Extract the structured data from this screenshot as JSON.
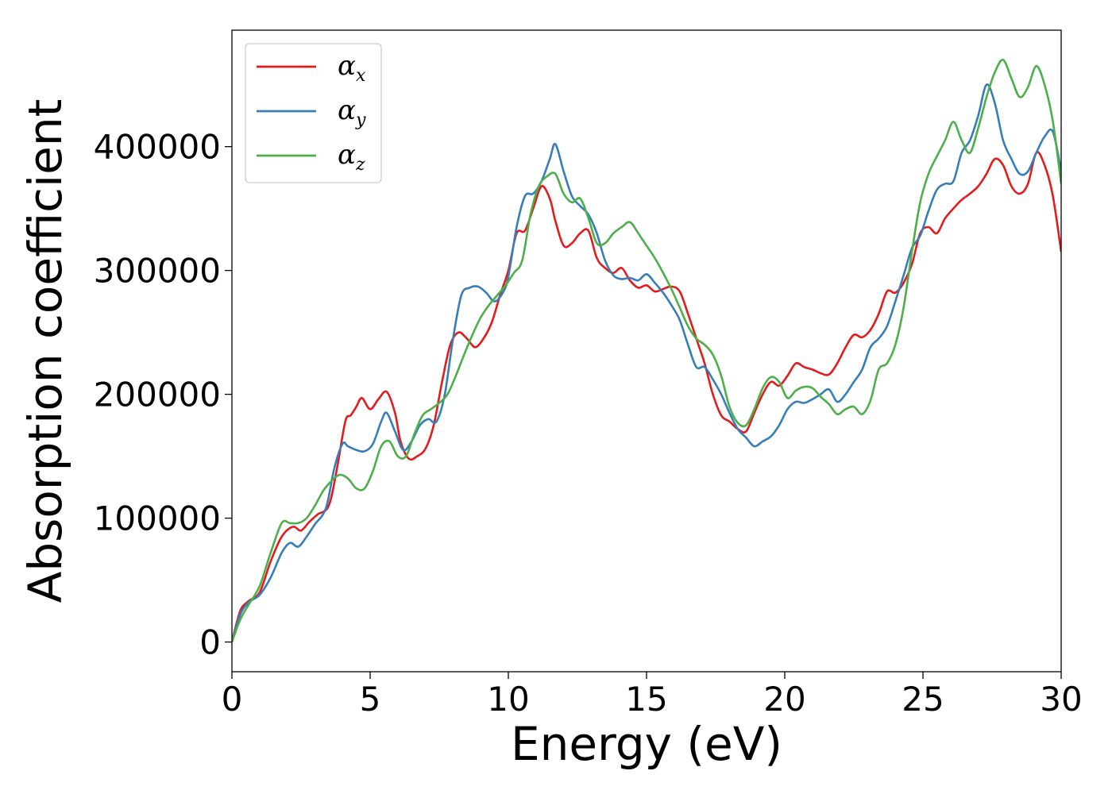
{
  "chart_data": {
    "type": "line",
    "title": "",
    "xlabel": "Energy (eV)",
    "ylabel": "Absorption coefficient",
    "xlim": [
      0,
      30
    ],
    "ylim": [
      -24000,
      494000
    ],
    "xticks": [
      0,
      5,
      10,
      15,
      20,
      25,
      30
    ],
    "yticks": [
      0,
      100000,
      200000,
      300000,
      400000
    ],
    "grid": false,
    "legend_position": "top-left",
    "series": [
      {
        "name": "α",
        "subscript": "x",
        "color": "#e41a1c",
        "x": [
          0,
          0.3,
          0.6,
          1.0,
          1.4,
          1.8,
          2.2,
          2.5,
          2.8,
          3.1,
          3.5,
          3.8,
          4.1,
          4.3,
          4.5,
          4.7,
          5.0,
          5.3,
          5.6,
          5.9,
          6.1,
          6.4,
          6.7,
          7.0,
          7.3,
          7.6,
          7.9,
          8.2,
          8.5,
          8.8,
          9.1,
          9.4,
          9.7,
          10.0,
          10.3,
          10.6,
          10.9,
          11.2,
          11.5,
          11.7,
          12.0,
          12.3,
          12.6,
          12.9,
          13.2,
          13.5,
          13.8,
          14.1,
          14.4,
          14.7,
          15.0,
          15.3,
          15.6,
          15.9,
          16.2,
          16.5,
          16.8,
          17.1,
          17.4,
          17.7,
          18.0,
          18.3,
          18.6,
          18.9,
          19.2,
          19.5,
          19.8,
          20.1,
          20.4,
          20.7,
          21.0,
          21.3,
          21.6,
          21.9,
          22.2,
          22.5,
          22.8,
          23.1,
          23.4,
          23.7,
          24.0,
          24.3,
          24.6,
          24.9,
          25.2,
          25.5,
          25.8,
          26.1,
          26.4,
          26.7,
          27.0,
          27.3,
          27.6,
          27.9,
          28.2,
          28.5,
          28.8,
          29.1,
          29.4,
          29.7,
          30.0
        ],
        "y": [
          0,
          25000,
          33000,
          40000,
          65000,
          85000,
          93000,
          90000,
          97000,
          103000,
          110000,
          140000,
          178000,
          183000,
          190000,
          197000,
          188000,
          196000,
          202000,
          185000,
          162000,
          148000,
          150000,
          156000,
          175000,
          210000,
          240000,
          250000,
          245000,
          238000,
          245000,
          258000,
          280000,
          300000,
          330000,
          332000,
          350000,
          368000,
          358000,
          340000,
          320000,
          322000,
          330000,
          332000,
          310000,
          302000,
          298000,
          302000,
          292000,
          286000,
          288000,
          283000,
          285000,
          287000,
          283000,
          265000,
          245000,
          225000,
          200000,
          183000,
          178000,
          172000,
          170000,
          185000,
          200000,
          210000,
          207000,
          215000,
          225000,
          222000,
          220000,
          217000,
          216000,
          225000,
          238000,
          248000,
          246000,
          252000,
          265000,
          283000,
          282000,
          290000,
          305000,
          330000,
          335000,
          330000,
          342000,
          350000,
          357000,
          362000,
          368000,
          378000,
          390000,
          385000,
          368000,
          362000,
          370000,
          395000,
          385000,
          360000,
          315000
        ]
      },
      {
        "name": "α",
        "subscript": "y",
        "color": "#377eb8",
        "x": [
          0,
          0.3,
          0.6,
          1.0,
          1.4,
          1.8,
          2.1,
          2.4,
          2.7,
          3.0,
          3.4,
          3.7,
          4.0,
          4.2,
          4.5,
          4.8,
          5.1,
          5.4,
          5.6,
          5.9,
          6.2,
          6.5,
          6.8,
          7.1,
          7.4,
          7.7,
          8.0,
          8.3,
          8.6,
          8.9,
          9.2,
          9.5,
          9.8,
          10.0,
          10.3,
          10.6,
          10.9,
          11.2,
          11.5,
          11.7,
          12.0,
          12.3,
          12.6,
          12.9,
          13.2,
          13.5,
          13.8,
          14.1,
          14.4,
          14.7,
          15.0,
          15.3,
          15.6,
          15.9,
          16.2,
          16.5,
          16.8,
          17.1,
          17.4,
          17.7,
          18.0,
          18.3,
          18.6,
          18.9,
          19.2,
          19.5,
          19.8,
          20.1,
          20.4,
          20.7,
          21.0,
          21.3,
          21.6,
          21.9,
          22.2,
          22.5,
          22.8,
          23.1,
          23.4,
          23.7,
          24.0,
          24.3,
          24.6,
          24.9,
          25.2,
          25.5,
          25.8,
          26.1,
          26.4,
          26.7,
          27.0,
          27.3,
          27.6,
          27.9,
          28.2,
          28.5,
          28.8,
          29.1,
          29.4,
          29.7,
          30.0
        ],
        "y": [
          0,
          22000,
          32000,
          38000,
          52000,
          72000,
          80000,
          77000,
          85000,
          95000,
          108000,
          140000,
          160000,
          158000,
          155000,
          154000,
          160000,
          178000,
          185000,
          170000,
          155000,
          162000,
          175000,
          180000,
          178000,
          200000,
          245000,
          280000,
          286000,
          287000,
          282000,
          275000,
          282000,
          295000,
          335000,
          360000,
          362000,
          372000,
          390000,
          402000,
          380000,
          360000,
          352000,
          345000,
          330000,
          308000,
          296000,
          293000,
          294000,
          292000,
          297000,
          290000,
          282000,
          272000,
          260000,
          240000,
          222000,
          222000,
          212000,
          200000,
          185000,
          172000,
          165000,
          158000,
          162000,
          166000,
          175000,
          188000,
          194000,
          193000,
          196000,
          200000,
          204000,
          194000,
          200000,
          210000,
          220000,
          238000,
          245000,
          255000,
          275000,
          296000,
          318000,
          328000,
          348000,
          365000,
          370000,
          372000,
          395000,
          405000,
          425000,
          450000,
          435000,
          405000,
          390000,
          378000,
          380000,
          395000,
          408000,
          412000,
          380000
        ]
      },
      {
        "name": "α",
        "subscript": "z",
        "color": "#4daf4a",
        "x": [
          0,
          0.3,
          0.6,
          1.0,
          1.4,
          1.8,
          2.1,
          2.4,
          2.7,
          3.0,
          3.3,
          3.6,
          3.9,
          4.2,
          4.5,
          4.8,
          5.1,
          5.4,
          5.7,
          6.0,
          6.3,
          6.6,
          6.9,
          7.2,
          7.5,
          7.8,
          8.1,
          8.4,
          8.7,
          9.0,
          9.3,
          9.6,
          9.9,
          10.2,
          10.5,
          10.8,
          11.1,
          11.4,
          11.7,
          12.0,
          12.3,
          12.6,
          12.9,
          13.2,
          13.5,
          13.8,
          14.1,
          14.4,
          14.7,
          15.0,
          15.3,
          15.6,
          15.9,
          16.2,
          16.5,
          16.8,
          17.1,
          17.4,
          17.7,
          18.0,
          18.3,
          18.6,
          18.9,
          19.2,
          19.5,
          19.8,
          20.1,
          20.4,
          20.7,
          21.0,
          21.3,
          21.6,
          21.9,
          22.2,
          22.5,
          22.8,
          23.1,
          23.4,
          23.7,
          24.0,
          24.3,
          24.6,
          24.9,
          25.2,
          25.5,
          25.8,
          26.1,
          26.4,
          26.7,
          27.0,
          27.3,
          27.6,
          27.9,
          28.2,
          28.5,
          28.8,
          29.1,
          29.4,
          29.7,
          30.0
        ],
        "y": [
          0,
          18000,
          30000,
          45000,
          72000,
          96000,
          96000,
          96000,
          100000,
          110000,
          122000,
          130000,
          135000,
          132000,
          124000,
          124000,
          138000,
          158000,
          162000,
          150000,
          150000,
          168000,
          183000,
          188000,
          193000,
          200000,
          215000,
          232000,
          248000,
          262000,
          272000,
          280000,
          288000,
          298000,
          308000,
          345000,
          368000,
          376000,
          378000,
          362000,
          355000,
          358000,
          342000,
          322000,
          322000,
          330000,
          335000,
          339000,
          330000,
          320000,
          310000,
          298000,
          285000,
          270000,
          255000,
          245000,
          240000,
          232000,
          215000,
          190000,
          177000,
          175000,
          188000,
          205000,
          214000,
          210000,
          197000,
          203000,
          206000,
          205000,
          198000,
          192000,
          184000,
          188000,
          190000,
          184000,
          195000,
          220000,
          225000,
          240000,
          270000,
          315000,
          355000,
          378000,
          392000,
          405000,
          420000,
          405000,
          395000,
          415000,
          440000,
          460000,
          470000,
          455000,
          440000,
          448000,
          465000,
          450000,
          420000,
          370000
        ]
      }
    ]
  }
}
